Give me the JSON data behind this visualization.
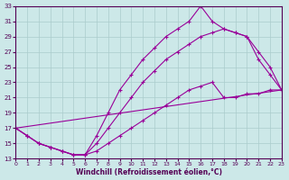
{
  "xlabel": "Windchill (Refroidissement éolien,°C)",
  "xlim": [
    0,
    23
  ],
  "ylim": [
    13,
    33
  ],
  "xticks": [
    0,
    1,
    2,
    3,
    4,
    5,
    6,
    7,
    8,
    9,
    10,
    11,
    12,
    13,
    14,
    15,
    16,
    17,
    18,
    19,
    20,
    21,
    22,
    23
  ],
  "yticks": [
    13,
    15,
    17,
    19,
    21,
    23,
    25,
    27,
    29,
    31,
    33
  ],
  "background_color": "#cce8e8",
  "line_color": "#990099",
  "grid_color": "#aacccc",
  "line_straight": {
    "x": [
      0,
      23
    ],
    "y": [
      17,
      22
    ]
  },
  "line1": {
    "x": [
      0,
      1,
      2,
      3,
      4,
      5,
      6,
      7,
      8,
      9,
      10,
      11,
      12,
      13,
      14,
      15,
      16,
      17,
      18,
      19,
      20,
      21,
      22,
      23
    ],
    "y": [
      17,
      16,
      15,
      14.5,
      14,
      13.5,
      13.5,
      14,
      15,
      16,
      17,
      18,
      19,
      20,
      21,
      22,
      22.5,
      23,
      21,
      21,
      21.5,
      21.5,
      22,
      22
    ]
  },
  "line2": {
    "x": [
      0,
      1,
      2,
      3,
      4,
      5,
      6,
      7,
      8,
      9,
      10,
      11,
      12,
      13,
      14,
      15,
      16,
      17,
      18,
      19,
      20,
      21,
      22,
      23
    ],
    "y": [
      17,
      16,
      15,
      14.5,
      14,
      13.5,
      13.5,
      15,
      17,
      19,
      21,
      23,
      24.5,
      26,
      27,
      28,
      29,
      29.5,
      30,
      29.5,
      29,
      26,
      24,
      22
    ]
  },
  "line3": {
    "x": [
      0,
      1,
      2,
      3,
      4,
      5,
      6,
      7,
      8,
      9,
      10,
      11,
      12,
      13,
      14,
      15,
      16,
      17,
      18,
      19,
      20,
      21,
      22,
      23
    ],
    "y": [
      17,
      16,
      15,
      14.5,
      14,
      13.5,
      13.5,
      16,
      19,
      22,
      24,
      26,
      27.5,
      29,
      30,
      31,
      33,
      31,
      30,
      29.5,
      29,
      27,
      25,
      22
    ]
  }
}
